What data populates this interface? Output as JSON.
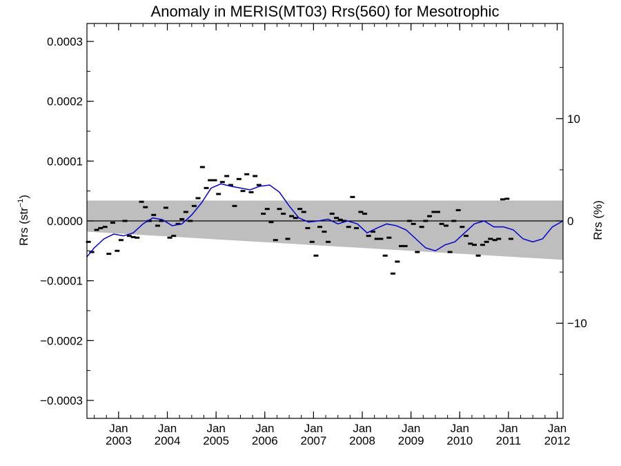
{
  "chart_data": {
    "type": "scatter",
    "title": "Anomaly in MERIS(MT03) Rrs(560) for Mesotrophic",
    "ylabel_left": "Rrs (str",
    "ylabel_left_sup": "−1",
    "ylabel_left_close": ")",
    "ylabel_right": "Rrs (%)",
    "ylim_left": [
      -0.00033,
      0.00033
    ],
    "ylim_right": [
      -19.3,
      19.3
    ],
    "xlim": [
      2002.35,
      2012.12
    ],
    "yticks_left": [
      {
        "value": 0.0003,
        "label": "0.0003"
      },
      {
        "value": 0.0002,
        "label": "0.0002"
      },
      {
        "value": 0.0001,
        "label": "0.0001"
      },
      {
        "value": 0.0,
        "label": "0.0000"
      },
      {
        "value": -0.0001,
        "label": "−0.0001"
      },
      {
        "value": -0.0002,
        "label": "−0.0002"
      },
      {
        "value": -0.0003,
        "label": "−0.0003"
      }
    ],
    "yticks_right": [
      {
        "value": 10,
        "label": "10"
      },
      {
        "value": 0,
        "label": "0"
      },
      {
        "value": -10,
        "label": "−10"
      }
    ],
    "xticks": [
      {
        "value": 2003.0,
        "month": "Jan",
        "year": "2003"
      },
      {
        "value": 2004.0,
        "month": "Jan",
        "year": "2004"
      },
      {
        "value": 2005.0,
        "month": "Jan",
        "year": "2005"
      },
      {
        "value": 2006.0,
        "month": "Jan",
        "year": "2006"
      },
      {
        "value": 2007.0,
        "month": "Jan",
        "year": "2007"
      },
      {
        "value": 2008.0,
        "month": "Jan",
        "year": "2008"
      },
      {
        "value": 2009.0,
        "month": "Jan",
        "year": "2009"
      },
      {
        "value": 2010.0,
        "month": "Jan",
        "year": "2010"
      },
      {
        "value": 2011.0,
        "month": "Jan",
        "year": "2011"
      },
      {
        "value": 2012.0,
        "month": "Jan",
        "year": "2012"
      }
    ],
    "band": {
      "x": [
        2002.35,
        2012.12
      ],
      "upper": [
        3.4e-05,
        3.4e-05
      ],
      "lower": [
        -1.8e-05,
        -6.5e-05
      ],
      "color": "#bebebe"
    },
    "points": [
      [
        2002.38,
        -3.5e-05
      ],
      [
        2002.45,
        -5.2e-05
      ],
      [
        2002.55,
        -1.5e-05
      ],
      [
        2002.63,
        -1.2e-05
      ],
      [
        2002.72,
        -1e-05
      ],
      [
        2002.8,
        -5.5e-05
      ],
      [
        2002.88,
        -3e-06
      ],
      [
        2002.97,
        -5e-05
      ],
      [
        2003.05,
        -3.2e-05
      ],
      [
        2003.13,
        0.0
      ],
      [
        2003.22,
        -2.5e-05
      ],
      [
        2003.3,
        -2.7e-05
      ],
      [
        2003.38,
        -2.8e-05
      ],
      [
        2003.47,
        3.2e-05
      ],
      [
        2003.55,
        2.3e-05
      ],
      [
        2003.63,
        0.0
      ],
      [
        2003.72,
        1e-05
      ],
      [
        2003.8,
        -8e-06
      ],
      [
        2003.88,
        0.0
      ],
      [
        2003.97,
        2.2e-05
      ],
      [
        2004.05,
        -2.8e-05
      ],
      [
        2004.13,
        -2.5e-05
      ],
      [
        2004.22,
        -5e-06
      ],
      [
        2004.3,
        3e-06
      ],
      [
        2004.38,
        1.5e-05
      ],
      [
        2004.47,
        0.0
      ],
      [
        2004.55,
        2.5e-05
      ],
      [
        2004.63,
        3.8e-05
      ],
      [
        2004.72,
        9e-05
      ],
      [
        2004.8,
        5.5e-05
      ],
      [
        2004.88,
        6.8e-05
      ],
      [
        2004.97,
        6.8e-05
      ],
      [
        2005.05,
        4.5e-05
      ],
      [
        2005.13,
        6.5e-05
      ],
      [
        2005.22,
        7.5e-05
      ],
      [
        2005.3,
        6e-05
      ],
      [
        2005.38,
        2.5e-05
      ],
      [
        2005.47,
        7e-05
      ],
      [
        2005.55,
        5e-05
      ],
      [
        2005.63,
        7.8e-05
      ],
      [
        2005.72,
        4.8e-05
      ],
      [
        2005.8,
        7.5e-05
      ],
      [
        2005.88,
        6e-05
      ],
      [
        2005.97,
        1.2e-05
      ],
      [
        2006.05,
        2e-05
      ],
      [
        2006.13,
        -2e-06
      ],
      [
        2006.22,
        -3.2e-05
      ],
      [
        2006.3,
        2e-05
      ],
      [
        2006.38,
        1.2e-05
      ],
      [
        2006.47,
        -3e-05
      ],
      [
        2006.55,
        8e-06
      ],
      [
        2006.63,
        5e-06
      ],
      [
        2006.72,
        2e-05
      ],
      [
        2006.8,
        1.5e-05
      ],
      [
        2006.88,
        -1.2e-05
      ],
      [
        2006.97,
        -3.5e-05
      ],
      [
        2007.05,
        -5.8e-05
      ],
      [
        2007.13,
        -1e-05
      ],
      [
        2007.22,
        -1.8e-05
      ],
      [
        2007.3,
        -3.5e-05
      ],
      [
        2007.38,
        1.2e-05
      ],
      [
        2007.47,
        5e-06
      ],
      [
        2007.55,
        2e-06
      ],
      [
        2007.63,
        0.0
      ],
      [
        2007.72,
        -1e-05
      ],
      [
        2007.8,
        4e-05
      ],
      [
        2007.88,
        -1.2e-05
      ],
      [
        2007.97,
        1.5e-05
      ],
      [
        2008.05,
        1.2e-05
      ],
      [
        2008.13,
        -2.5e-05
      ],
      [
        2008.22,
        -1.8e-05
      ],
      [
        2008.3,
        -3e-05
      ],
      [
        2008.38,
        -3e-05
      ],
      [
        2008.47,
        -5.8e-05
      ],
      [
        2008.55,
        -2.8e-05
      ],
      [
        2008.63,
        -8.8e-05
      ],
      [
        2008.72,
        -6.8e-05
      ],
      [
        2008.8,
        -4.2e-05
      ],
      [
        2008.88,
        -4.2e-05
      ],
      [
        2008.97,
        0.0
      ],
      [
        2009.05,
        -5e-06
      ],
      [
        2009.13,
        -5.2e-05
      ],
      [
        2009.22,
        -1e-05
      ],
      [
        2009.3,
        0.0
      ],
      [
        2009.38,
        8e-06
      ],
      [
        2009.47,
        1.5e-05
      ],
      [
        2009.55,
        1.5e-05
      ],
      [
        2009.63,
        -5e-06
      ],
      [
        2009.72,
        -8e-06
      ],
      [
        2009.8,
        -5.2e-05
      ],
      [
        2009.88,
        0.0
      ],
      [
        2009.97,
        1.8e-05
      ],
      [
        2010.05,
        -1e-05
      ],
      [
        2010.13,
        -2.5e-05
      ],
      [
        2010.22,
        -3.8e-05
      ],
      [
        2010.3,
        -4e-05
      ],
      [
        2010.38,
        -5.8e-05
      ],
      [
        2010.47,
        -4e-05
      ],
      [
        2010.55,
        -3.5e-05
      ],
      [
        2010.63,
        -3e-05
      ],
      [
        2010.72,
        -3.2e-05
      ],
      [
        2010.8,
        -3e-05
      ],
      [
        2010.88,
        3.6e-05
      ],
      [
        2010.97,
        3.7e-05
      ],
      [
        2011.05,
        -3e-05
      ]
    ],
    "smooth_line": {
      "color": "#0000cc",
      "x": [
        2002.35,
        2002.5,
        2002.7,
        2002.9,
        2003.1,
        2003.3,
        2003.5,
        2003.7,
        2003.9,
        2004.1,
        2004.3,
        2004.5,
        2004.7,
        2004.9,
        2005.1,
        2005.3,
        2005.5,
        2005.7,
        2005.9,
        2006.1,
        2006.3,
        2006.5,
        2006.7,
        2006.9,
        2007.1,
        2007.3,
        2007.5,
        2007.7,
        2007.9,
        2008.1,
        2008.3,
        2008.5,
        2008.7,
        2008.9,
        2009.1,
        2009.3,
        2009.5,
        2009.7,
        2009.9,
        2010.1,
        2010.3,
        2010.5,
        2010.7,
        2010.9,
        2011.1,
        2011.3,
        2011.5,
        2011.7,
        2011.9,
        2012.12
      ],
      "y": [
        -6e-05,
        -4.5e-05,
        -3e-05,
        -2.2e-05,
        -2.5e-05,
        -2e-05,
        -5e-06,
        5e-06,
        2e-06,
        -8e-06,
        -5e-06,
        1e-05,
        3e-05,
        5.5e-05,
        6.2e-05,
        5.8e-05,
        5.5e-05,
        5.2e-05,
        5.8e-05,
        6e-05,
        4.8e-05,
        2.5e-05,
        5e-06,
        -2e-06,
        0.0,
        3e-06,
        -5e-06,
        0.0,
        -5e-06,
        -2e-05,
        -1.2e-05,
        -5e-06,
        -8e-06,
        -1.5e-05,
        -3e-05,
        -4.5e-05,
        -5e-05,
        -4e-05,
        -3.5e-05,
        -2e-05,
        -5e-06,
        0.0,
        -1e-05,
        -1e-05,
        -1.5e-05,
        -3e-05,
        -3.5e-05,
        -3e-05,
        -1e-05,
        0.0
      ]
    },
    "zero_line": 0.0,
    "grid": false,
    "legend": "none"
  }
}
